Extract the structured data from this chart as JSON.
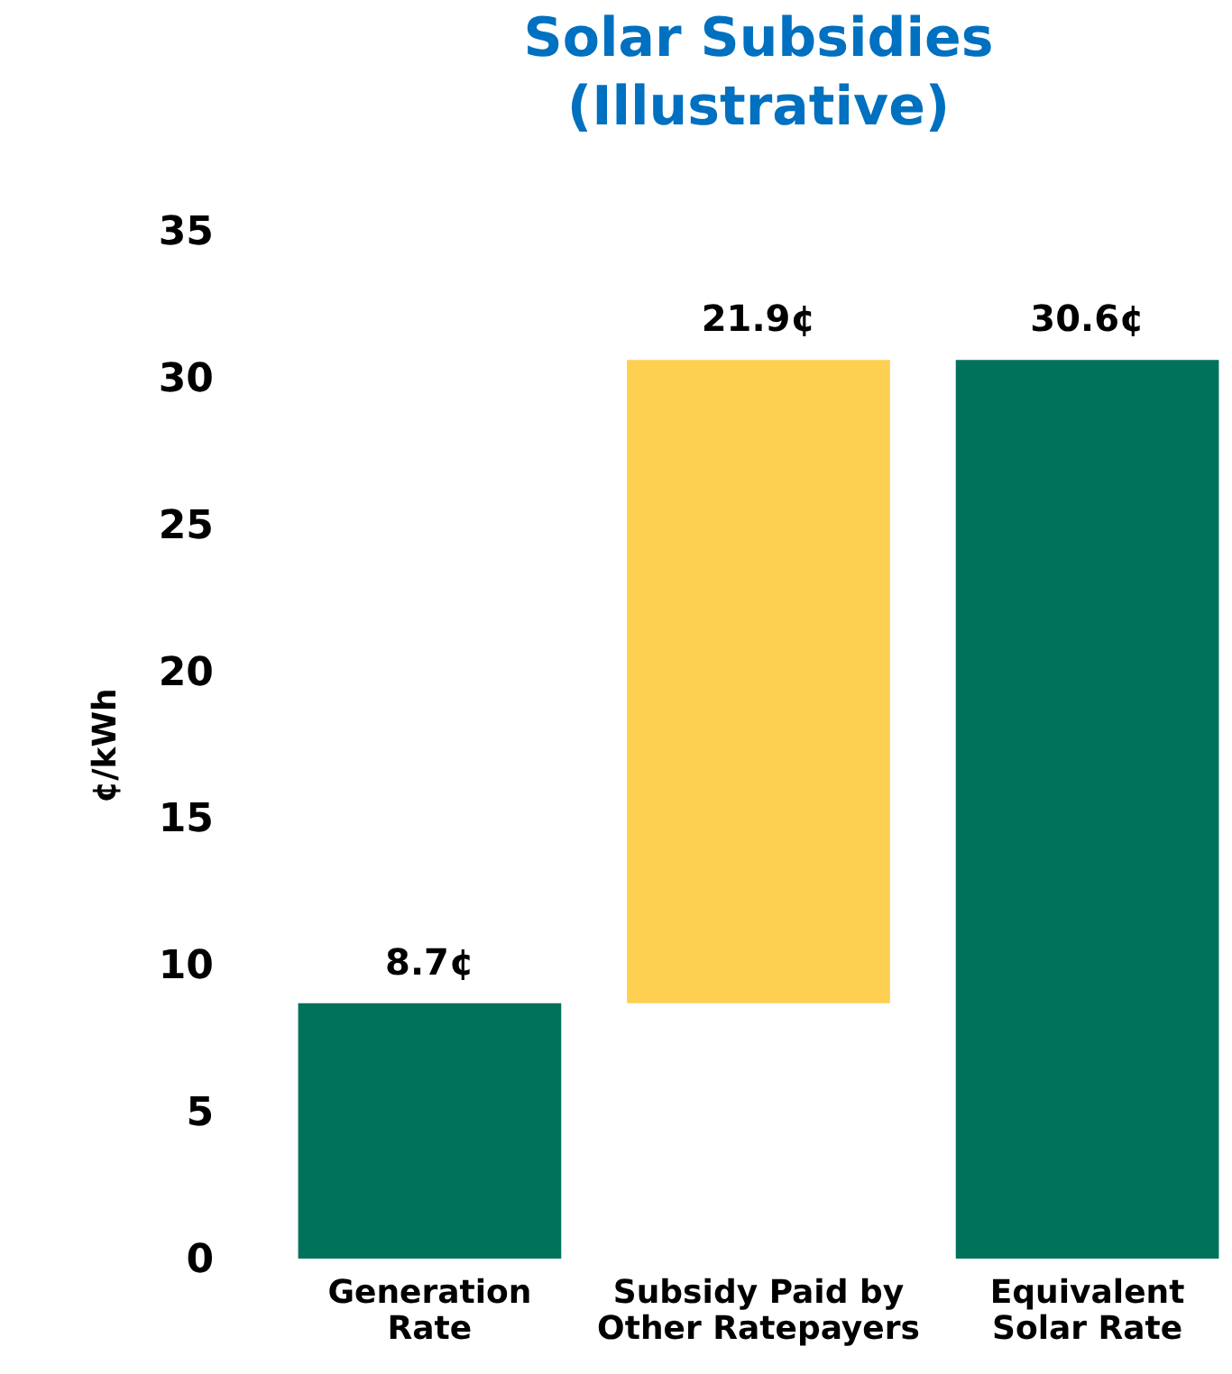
{
  "chart_data": {
    "type": "bar",
    "title": "Solar Subsidies (Illustrative)",
    "ylabel": "¢/kWh",
    "categories": [
      "Generation Rate",
      "Subsidy Paid by Other Ratepayers",
      "Equivalent Solar Rate"
    ],
    "values": [
      8.7,
      21.9,
      30.6
    ],
    "base": [
      0,
      8.7,
      0
    ],
    "colors": [
      "#00715a",
      "#fdd052",
      "#00715a"
    ],
    "value_labels": [
      "8.7¢",
      "21.9¢",
      "30.6¢"
    ],
    "ylim": [
      0,
      35
    ],
    "yticks": [
      0,
      5,
      10,
      15,
      20,
      25,
      30,
      35
    ],
    "grid": false
  }
}
